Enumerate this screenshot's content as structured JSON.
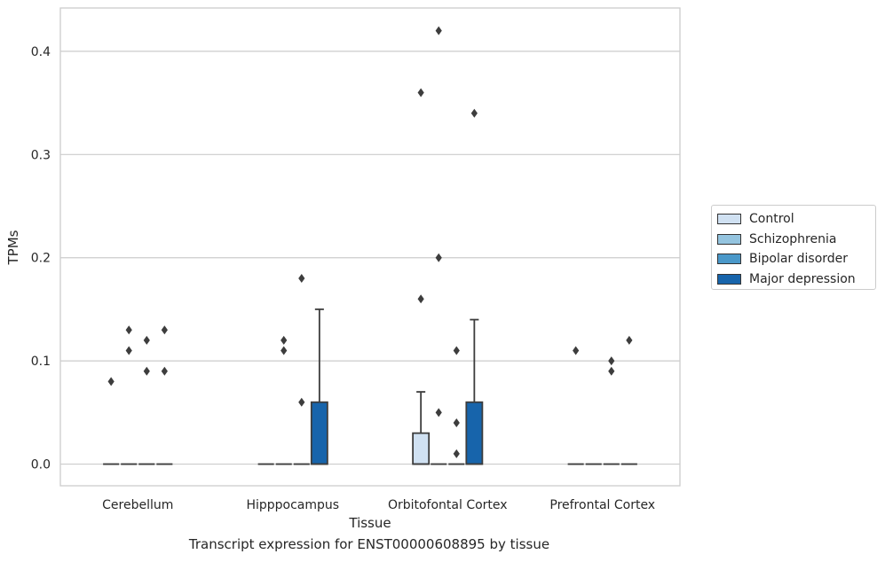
{
  "chart_data": {
    "type": "box",
    "xlabel": "Tissue",
    "ylabel": "TPMs",
    "caption": "Transcript expression for ENST00000608895 by tissue",
    "ylim": [
      -0.021,
      0.442
    ],
    "yticks": [
      0.0,
      0.1,
      0.2,
      0.3,
      0.4
    ],
    "ytick_labels": [
      "0.0",
      "0.1",
      "0.2",
      "0.3",
      "0.4"
    ],
    "categories": [
      "Cerebellum",
      "Hipppocampus",
      "Orbitofontal Cortex",
      "Prefrontal Cortex"
    ],
    "legend_position": "right",
    "series": [
      {
        "name": "Control",
        "color": "#d0e1f2",
        "boxes": [
          {
            "q1": 0,
            "median": 0,
            "q3": 0,
            "whisker_low": 0,
            "whisker_high": 0,
            "outliers": [
              0.08
            ]
          },
          {
            "q1": 0,
            "median": 0,
            "q3": 0,
            "whisker_low": 0,
            "whisker_high": 0,
            "outliers": []
          },
          {
            "q1": 0,
            "median": 0,
            "q3": 0.03,
            "whisker_low": 0,
            "whisker_high": 0.07,
            "outliers": [
              0.36,
              0.16
            ]
          },
          {
            "q1": 0,
            "median": 0,
            "q3": 0,
            "whisker_low": 0,
            "whisker_high": 0,
            "outliers": [
              0.11
            ]
          }
        ]
      },
      {
        "name": "Schizophrenia",
        "color": "#94c4df",
        "boxes": [
          {
            "q1": 0,
            "median": 0,
            "q3": 0,
            "whisker_low": 0,
            "whisker_high": 0,
            "outliers": [
              0.13,
              0.11
            ]
          },
          {
            "q1": 0,
            "median": 0,
            "q3": 0,
            "whisker_low": 0,
            "whisker_high": 0,
            "outliers": [
              0.12,
              0.11
            ]
          },
          {
            "q1": 0,
            "median": 0,
            "q3": 0,
            "whisker_low": 0,
            "whisker_high": 0,
            "outliers": [
              0.42,
              0.2,
              0.05
            ]
          },
          {
            "q1": 0,
            "median": 0,
            "q3": 0,
            "whisker_low": 0,
            "whisker_high": 0,
            "outliers": []
          }
        ]
      },
      {
        "name": "Bipolar disorder",
        "color": "#4a98c9",
        "boxes": [
          {
            "q1": 0,
            "median": 0,
            "q3": 0,
            "whisker_low": 0,
            "whisker_high": 0,
            "outliers": [
              0.12,
              0.09
            ]
          },
          {
            "q1": 0,
            "median": 0,
            "q3": 0,
            "whisker_low": 0,
            "whisker_high": 0,
            "outliers": [
              0.18,
              0.06
            ]
          },
          {
            "q1": 0,
            "median": 0,
            "q3": 0,
            "whisker_low": 0,
            "whisker_high": 0,
            "outliers": [
              0.11,
              0.04,
              0.01
            ]
          },
          {
            "q1": 0,
            "median": 0,
            "q3": 0,
            "whisker_low": 0,
            "whisker_high": 0,
            "outliers": [
              0.1,
              0.09
            ]
          }
        ]
      },
      {
        "name": "Major depression",
        "color": "#1764ab",
        "boxes": [
          {
            "q1": 0,
            "median": 0,
            "q3": 0,
            "whisker_low": 0,
            "whisker_high": 0,
            "outliers": [
              0.13,
              0.09
            ]
          },
          {
            "q1": 0,
            "median": 0,
            "q3": 0.06,
            "whisker_low": 0,
            "whisker_high": 0.15,
            "outliers": []
          },
          {
            "q1": 0,
            "median": 0,
            "q3": 0.06,
            "whisker_low": 0,
            "whisker_high": 0.14,
            "outliers": [
              0.34
            ]
          },
          {
            "q1": 0,
            "median": 0,
            "q3": 0,
            "whisker_low": 0,
            "whisker_high": 0,
            "outliers": [
              0.12
            ]
          }
        ]
      }
    ]
  }
}
